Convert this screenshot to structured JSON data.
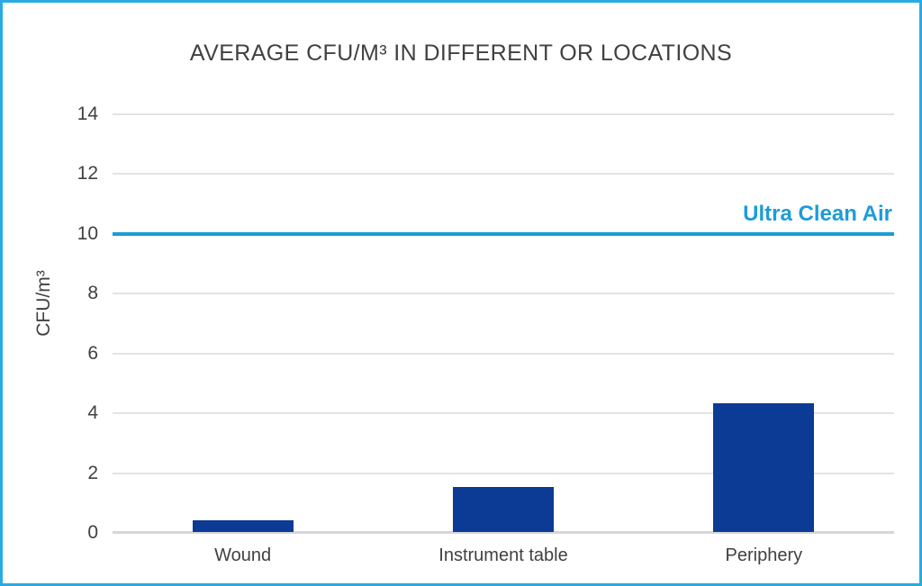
{
  "frame": {
    "border_color": "#29ABE2",
    "background_color": "#FFFFFF"
  },
  "chart_data": {
    "type": "bar",
    "title": "AVERAGE CFU/M³ IN DIFFERENT OR LOCATIONS",
    "xlabel": "",
    "ylabel": "CFU/m³",
    "categories": [
      "Wound",
      "Instrument table",
      "Periphery"
    ],
    "values": [
      0.4,
      1.5,
      4.3
    ],
    "ylim": [
      0,
      14
    ],
    "yticks": [
      0,
      2,
      4,
      6,
      8,
      10,
      12,
      14
    ],
    "grid": true,
    "legend": "none",
    "bar_color": "#0B3B94",
    "text_color": "#414042",
    "gridline_color": "#E3E3E3",
    "baseline_color": "#D6D6D6",
    "reference_line": {
      "label": "Ultra Clean Air",
      "value": 10,
      "color": "#1E9CD7"
    }
  }
}
